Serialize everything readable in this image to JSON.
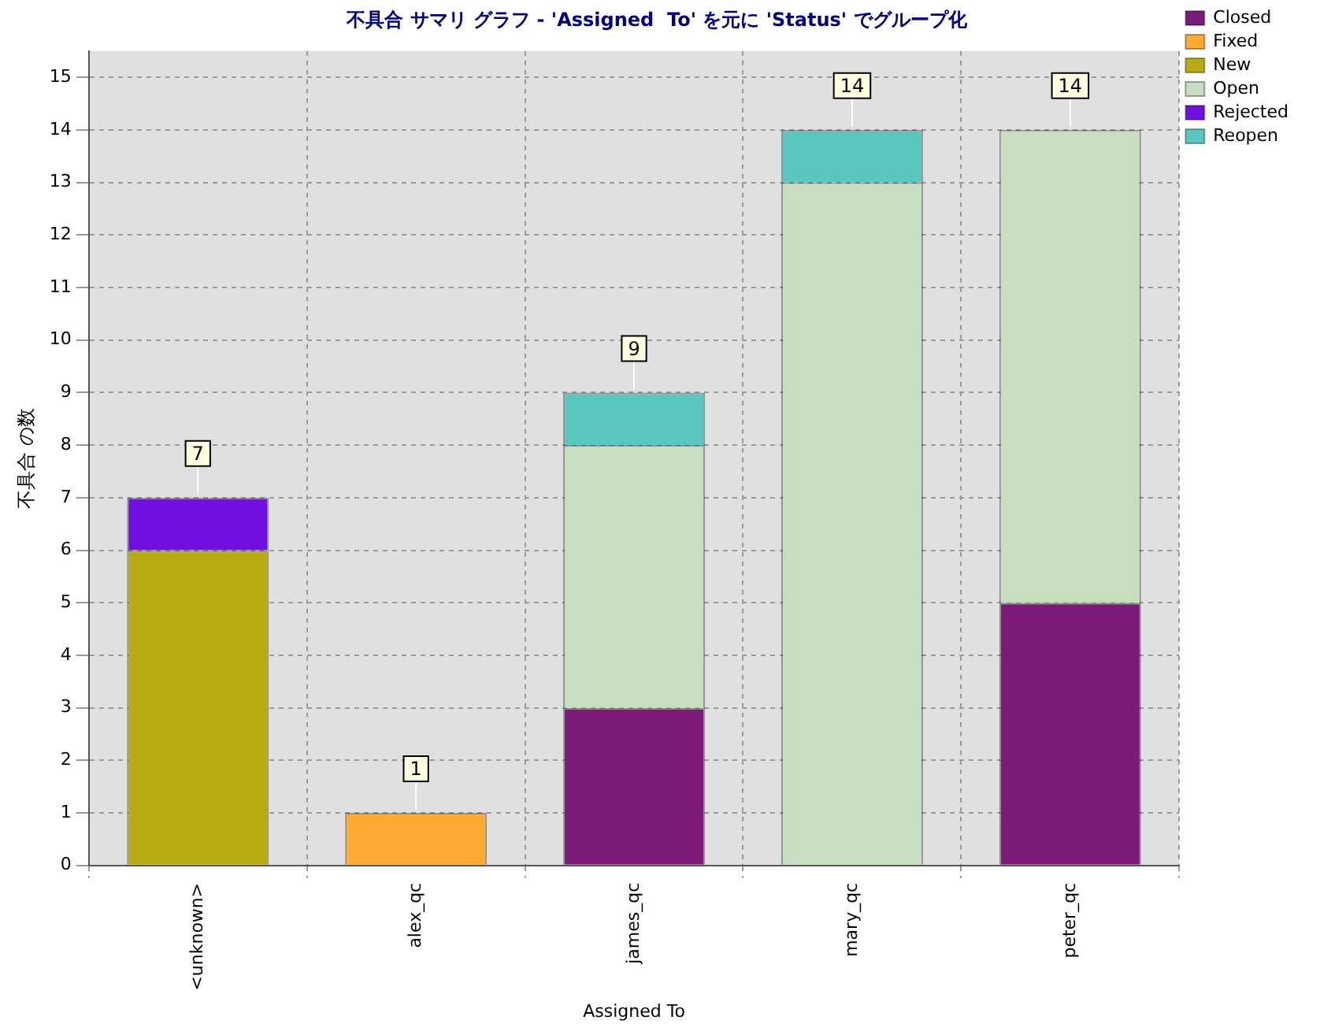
{
  "chart_data": {
    "type": "bar",
    "stacked": true,
    "title": "不具合 サマリ グラフ - 'Assigned  To' を元に 'Status' でグループ化",
    "xlabel": "Assigned To",
    "ylabel": "不具合 の数",
    "categories": [
      "<unknown>",
      "alex_qc",
      "james_qc",
      "mary_qc",
      "peter_qc"
    ],
    "series": [
      {
        "name": "Closed",
        "color": "#7b1a77",
        "values": [
          0,
          0,
          3,
          0,
          5
        ]
      },
      {
        "name": "Fixed",
        "color": "#ffaa33",
        "values": [
          0,
          1,
          0,
          0,
          0
        ]
      },
      {
        "name": "New",
        "color": "#b8ab14",
        "values": [
          6,
          0,
          0,
          0,
          0
        ]
      },
      {
        "name": "Open",
        "color": "#c9ddc0",
        "values": [
          0,
          0,
          5,
          13,
          9
        ]
      },
      {
        "name": "Rejected",
        "color": "#7010e0",
        "values": [
          1,
          0,
          0,
          0,
          0
        ]
      },
      {
        "name": "Reopen",
        "color": "#5bc8c0",
        "values": [
          0,
          0,
          1,
          1,
          0
        ]
      }
    ],
    "totals": [
      "7",
      "1",
      "9",
      "14",
      "14"
    ],
    "ylim": [
      0,
      15.5
    ],
    "yticks": [
      0,
      1,
      2,
      3,
      4,
      5,
      6,
      7,
      8,
      9,
      10,
      11,
      12,
      13,
      14,
      15
    ],
    "grid": true,
    "legend": "top right"
  }
}
